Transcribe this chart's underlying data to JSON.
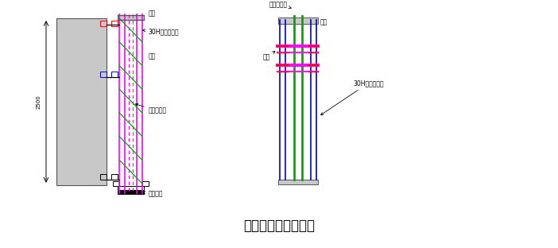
{
  "title": "单层双面导架示意图",
  "title_fontsize": 12,
  "bg_color": "#ffffff",
  "fig_width": 7.02,
  "fig_height": 3.12,
  "dpi": 100,
  "labels": {
    "guide_beam_left": "导梁",
    "support_30H_left": "30H槽钢支撑桩",
    "cow_leg_left": "牛腿",
    "pull_rod_left": "拉森钢板桩",
    "positioning_plate": "限位卡板",
    "pull_rod_top": "拉森钢板桩",
    "guide_beam_right": "导梁",
    "cow_leg_right": "牛腿",
    "support_30H_right": "30H槽钢支撑桩",
    "dim_2500": "2500"
  },
  "colors": {
    "pink": "#ff00ff",
    "green": "#00aa00",
    "blue": "#0000cc",
    "gray_fill": "#c8c8c8",
    "gray_line": "#808080",
    "black": "#000000",
    "red": "#ff0000",
    "magenta": "#ff00ff"
  }
}
